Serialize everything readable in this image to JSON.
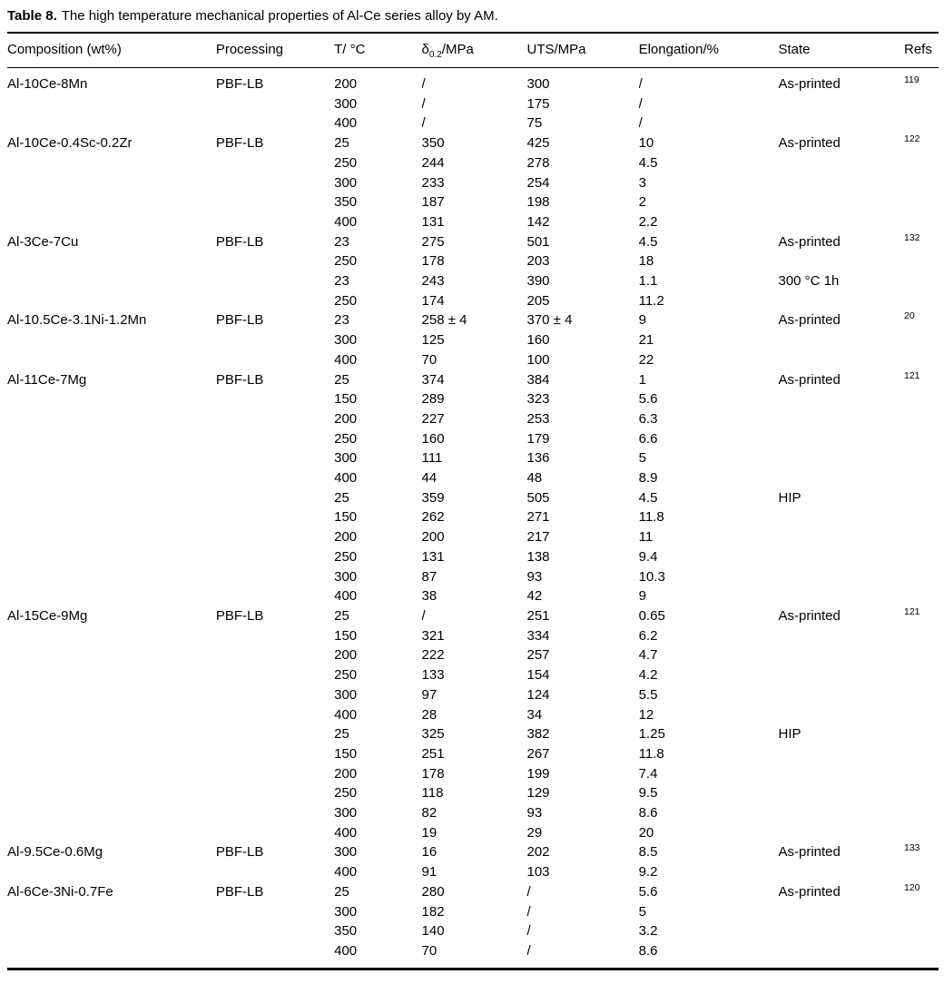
{
  "caption": {
    "label": "Table 8.",
    "title": "The high temperature mechanical properties of Al-Ce series alloy by AM."
  },
  "table": {
    "columns": [
      "Composition (wt%)",
      "Processing",
      "T/ °C",
      {
        "symbol": "δ",
        "sub": "0.2",
        "suffix": "/MPa"
      },
      "UTS/MPa",
      "Elongation/%",
      "State",
      "Refs"
    ],
    "column_keys": [
      "composition",
      "processing",
      "temperature",
      "yield-strength",
      "uts",
      "elongation",
      "state",
      "refs"
    ],
    "rows": [
      [
        "Al-10Ce-8Mn",
        "PBF-LB",
        "200",
        "/",
        "300",
        "/",
        "As-printed",
        "119"
      ],
      [
        "",
        "",
        "300",
        "/",
        "175",
        "/",
        "",
        ""
      ],
      [
        "",
        "",
        "400",
        "/",
        "75",
        "/",
        "",
        ""
      ],
      [
        "Al-10Ce-0.4Sc-0.2Zr",
        "PBF-LB",
        "25",
        "350",
        "425",
        "10",
        "As-printed",
        "122"
      ],
      [
        "",
        "",
        "250",
        "244",
        "278",
        "4.5",
        "",
        ""
      ],
      [
        "",
        "",
        "300",
        "233",
        "254",
        "3",
        "",
        ""
      ],
      [
        "",
        "",
        "350",
        "187",
        "198",
        "2",
        "",
        ""
      ],
      [
        "",
        "",
        "400",
        "131",
        "142",
        "2.2",
        "",
        ""
      ],
      [
        "Al-3Ce-7Cu",
        "PBF-LB",
        "23",
        "275",
        "501",
        "4.5",
        "As-printed",
        "132"
      ],
      [
        "",
        "",
        "250",
        "178",
        "203",
        "18",
        "",
        ""
      ],
      [
        "",
        "",
        "23",
        "243",
        "390",
        "1.1",
        "300 °C 1h",
        ""
      ],
      [
        "",
        "",
        "250",
        "174",
        "205",
        "11.2",
        "",
        ""
      ],
      [
        "Al-10.5Ce-3.1Ni-1.2Mn",
        "PBF-LB",
        "23",
        "258 ± 4",
        "370 ± 4",
        "9",
        "As-printed",
        "20"
      ],
      [
        "",
        "",
        "300",
        "125",
        "160",
        "21",
        "",
        ""
      ],
      [
        "",
        "",
        "400",
        "70",
        "100",
        "22",
        "",
        ""
      ],
      [
        "Al-11Ce-7Mg",
        "PBF-LB",
        "25",
        "374",
        "384",
        "1",
        "As-printed",
        "121"
      ],
      [
        "",
        "",
        "150",
        "289",
        "323",
        "5.6",
        "",
        ""
      ],
      [
        "",
        "",
        "200",
        "227",
        "253",
        "6.3",
        "",
        ""
      ],
      [
        "",
        "",
        "250",
        "160",
        "179",
        "6.6",
        "",
        ""
      ],
      [
        "",
        "",
        "300",
        "111",
        "136",
        "5",
        "",
        ""
      ],
      [
        "",
        "",
        "400",
        "44",
        "48",
        "8.9",
        "",
        ""
      ],
      [
        "",
        "",
        "25",
        "359",
        "505",
        "4.5",
        "HIP",
        ""
      ],
      [
        "",
        "",
        "150",
        "262",
        "271",
        "11.8",
        "",
        ""
      ],
      [
        "",
        "",
        "200",
        "200",
        "217",
        "11",
        "",
        ""
      ],
      [
        "",
        "",
        "250",
        "131",
        "138",
        "9.4",
        "",
        ""
      ],
      [
        "",
        "",
        "300",
        "87",
        "93",
        "10.3",
        "",
        ""
      ],
      [
        "",
        "",
        "400",
        "38",
        "42",
        "9",
        "",
        ""
      ],
      [
        "Al-15Ce-9Mg",
        "PBF-LB",
        "25",
        "/",
        "251",
        "0.65",
        "As-printed",
        "121"
      ],
      [
        "",
        "",
        "150",
        "321",
        "334",
        "6.2",
        "",
        ""
      ],
      [
        "",
        "",
        "200",
        "222",
        "257",
        "4.7",
        "",
        ""
      ],
      [
        "",
        "",
        "250",
        "133",
        "154",
        "4.2",
        "",
        ""
      ],
      [
        "",
        "",
        "300",
        "97",
        "124",
        "5.5",
        "",
        ""
      ],
      [
        "",
        "",
        "400",
        "28",
        "34",
        "12",
        "",
        ""
      ],
      [
        "",
        "",
        "25",
        "325",
        "382",
        "1.25",
        "HIP",
        ""
      ],
      [
        "",
        "",
        "150",
        "251",
        "267",
        "11.8",
        "",
        ""
      ],
      [
        "",
        "",
        "200",
        "178",
        "199",
        "7.4",
        "",
        ""
      ],
      [
        "",
        "",
        "250",
        "118",
        "129",
        "9.5",
        "",
        ""
      ],
      [
        "",
        "",
        "300",
        "82",
        "93",
        "8.6",
        "",
        ""
      ],
      [
        "",
        "",
        "400",
        "19",
        "29",
        "20",
        "",
        ""
      ],
      [
        "Al-9.5Ce-0.6Mg",
        "PBF-LB",
        "300",
        "16",
        "202",
        "8.5",
        "As-printed",
        "133"
      ],
      [
        "",
        "",
        "400",
        "91",
        "103",
        "9.2",
        "",
        ""
      ],
      [
        "Al-6Ce-3Ni-0.7Fe",
        "PBF-LB",
        "25",
        "280",
        "/",
        "5.6",
        "As-printed",
        "120"
      ],
      [
        "",
        "",
        "300",
        "182",
        "/",
        "5",
        "",
        ""
      ],
      [
        "",
        "",
        "350",
        "140",
        "/",
        "3.2",
        "",
        ""
      ],
      [
        "",
        "",
        "400",
        "70",
        "/",
        "8.6",
        "",
        ""
      ]
    ]
  },
  "colors": {
    "text": "#000000",
    "rule": "#000000",
    "background": "#ffffff"
  }
}
